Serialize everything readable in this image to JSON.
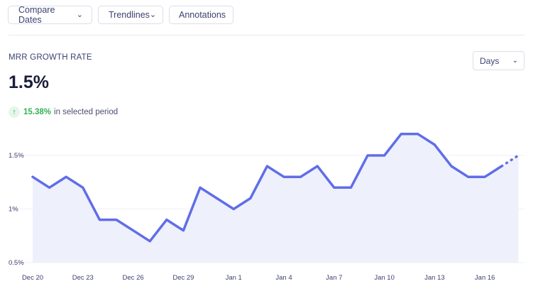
{
  "toolbar": {
    "compare_dates": "Compare Dates",
    "trendlines": "Trendlines",
    "annotations": "Annotations"
  },
  "metric": {
    "label": "MRR GROWTH RATE",
    "value": "1.5%",
    "delta_pct": "15.38%",
    "delta_text": "in selected period"
  },
  "period_select": {
    "value": "Days"
  },
  "colors": {
    "line": "#5f6ee8",
    "fill": "#eef0fc",
    "grid": "#eef0f5",
    "positive": "#34b256"
  },
  "chart_data": {
    "type": "area",
    "x": [
      "Dec 20",
      "Dec 21",
      "Dec 22",
      "Dec 23",
      "Dec 24",
      "Dec 25",
      "Dec 26",
      "Dec 27",
      "Dec 28",
      "Dec 29",
      "Dec 30",
      "Dec 31",
      "Jan 1",
      "Jan 2",
      "Jan 3",
      "Jan 4",
      "Jan 5",
      "Jan 6",
      "Jan 7",
      "Jan 8",
      "Jan 9",
      "Jan 10",
      "Jan 11",
      "Jan 12",
      "Jan 13",
      "Jan 14",
      "Jan 15",
      "Jan 16",
      "Jan 17",
      "Jan 18"
    ],
    "series": [
      {
        "values": [
          1.3,
          1.2,
          1.3,
          1.2,
          0.9,
          0.9,
          0.8,
          0.7,
          0.9,
          0.8,
          1.2,
          1.1,
          1.0,
          1.1,
          1.4,
          1.3,
          1.3,
          1.4,
          1.2,
          1.2,
          1.5,
          1.5,
          1.7,
          1.7,
          1.6,
          1.4,
          1.3,
          1.3,
          1.4,
          1.5
        ]
      }
    ],
    "projected_from_index": 28,
    "x_tick_labels": [
      "Dec 20",
      "Dec 23",
      "Dec 26",
      "Dec 29",
      "Jan 1",
      "Jan 4",
      "Jan 7",
      "Jan 10",
      "Jan 13",
      "Jan 16"
    ],
    "y_tick_labels": [
      "0.5%",
      "1%",
      "1.5%"
    ],
    "y_ticks": [
      0.5,
      1.0,
      1.5
    ],
    "ylim": [
      0.5,
      1.8
    ],
    "grid": true
  }
}
